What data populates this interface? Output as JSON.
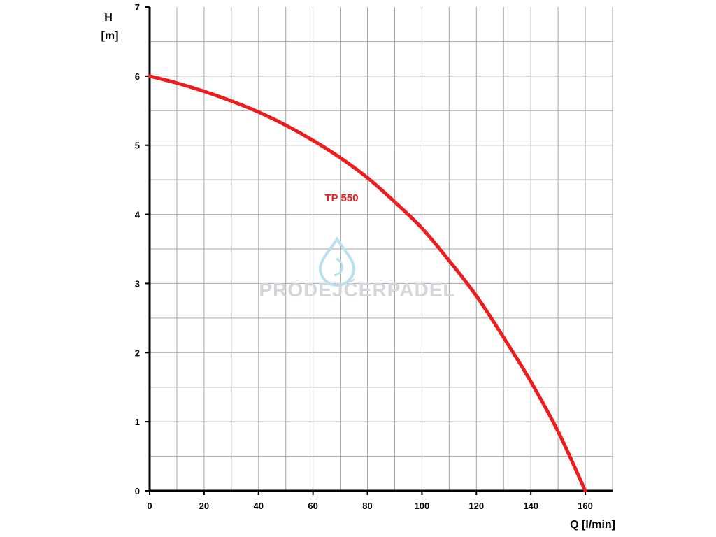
{
  "chart_data": {
    "type": "line",
    "xlabel": "Q [l/min]",
    "ylabel": [
      "H",
      "[m]"
    ],
    "xlim": [
      0,
      170
    ],
    "ylim": [
      0,
      7
    ],
    "x_ticks": [
      0,
      20,
      40,
      60,
      80,
      100,
      120,
      140,
      160
    ],
    "y_ticks": [
      0,
      1,
      2,
      3,
      4,
      5,
      6,
      7
    ],
    "x_minor_step": 10,
    "y_minor_step": 0.5,
    "grid": true,
    "series": [
      {
        "name": "TP 550",
        "color": "#ee1c1c",
        "x": [
          0,
          10,
          20,
          30,
          40,
          50,
          60,
          70,
          80,
          90,
          100,
          110,
          120,
          130,
          140,
          150,
          160
        ],
        "y": [
          6.0,
          5.9,
          5.78,
          5.64,
          5.48,
          5.29,
          5.07,
          4.82,
          4.53,
          4.18,
          3.8,
          3.33,
          2.82,
          2.22,
          1.58,
          0.86,
          0.0
        ]
      }
    ]
  },
  "watermark": {
    "text": "PRODEJČERPADEL",
    "icon": "water-drop-icon",
    "color": "#d3d7db",
    "accent": "#b9e2ee"
  }
}
